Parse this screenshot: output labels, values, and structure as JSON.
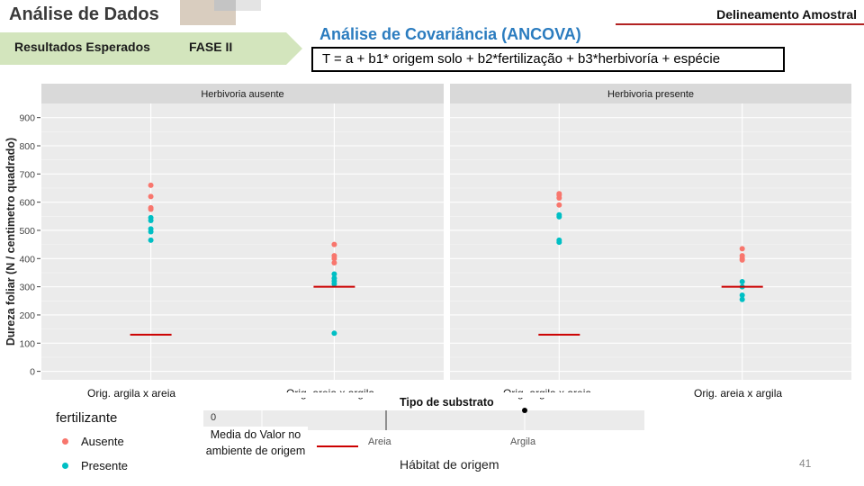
{
  "header": {
    "title": "Análise de Dados",
    "section": "Delineamento Amostral"
  },
  "phase": {
    "left": "Resultados Esperados",
    "right": "FASE II"
  },
  "analysis": {
    "title": "Análise de Covariância (ANCOVA)",
    "equation": "T = a + b1* origem solo + b2*fertilização + b3*herbivoría + espécie"
  },
  "colors": {
    "ausente": "#F8766D",
    "presente": "#00BFC4",
    "mean_line": "#cc0000",
    "panel_bg": "#EBEBEB",
    "strip_bg": "#D9D9D9"
  },
  "chart_data": {
    "type": "scatter",
    "ylabel": "Dureza foliar (N / centimetro quadrado)",
    "ylim": [
      -30,
      950
    ],
    "yticks": [
      0,
      100,
      200,
      300,
      400,
      500,
      600,
      700,
      800,
      900
    ],
    "categories": [
      "Orig. argila x areia",
      "Orig. areia x argila"
    ],
    "panels": [
      {
        "title": "Herbivoria ausente",
        "groups": [
          {
            "category": "Orig. argila x areia",
            "series": [
              {
                "name": "Ausente",
                "values": [
                  660,
                  620,
                  580,
                  575
                ]
              },
              {
                "name": "Presente",
                "values": [
                  545,
                  535,
                  505,
                  495,
                  465
                ]
              }
            ],
            "mean": 130
          },
          {
            "category": "Orig. areia x argila",
            "series": [
              {
                "name": "Ausente",
                "values": [
                  450,
                  410,
                  400,
                  385
                ]
              },
              {
                "name": "Presente",
                "values": [
                  345,
                  330,
                  320,
                  310,
                  135
                ]
              }
            ],
            "mean": 300
          }
        ]
      },
      {
        "title": "Herbivoria presente",
        "groups": [
          {
            "category": "Orig. argila x areia",
            "series": [
              {
                "name": "Ausente",
                "values": [
                  630,
                  625,
                  615,
                  590
                ]
              },
              {
                "name": "Presente",
                "values": [
                  555,
                  548,
                  465,
                  458
                ]
              }
            ],
            "mean": 130
          },
          {
            "category": "Orig. areia x argila",
            "series": [
              {
                "name": "Ausente",
                "values": [
                  435,
                  410,
                  400,
                  395
                ]
              },
              {
                "name": "Presente",
                "values": [
                  318,
                  300,
                  270,
                  255
                ]
              }
            ],
            "mean": 300
          }
        ]
      }
    ],
    "legend": {
      "title": "fertilizante",
      "items": [
        "Ausente",
        "Presente"
      ],
      "position": "bottom-left"
    }
  },
  "bottom_fragment": {
    "title": "Tipo de substrato",
    "tick": "0",
    "categories": [
      "Areia",
      "Argila"
    ],
    "xlabel": "Hábitat de origem"
  },
  "mean_note": "Media do Valor no ambiente de origem",
  "page_number": "41"
}
